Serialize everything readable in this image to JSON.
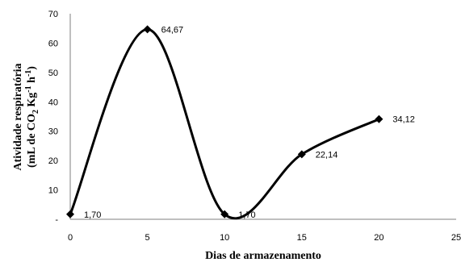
{
  "chart_data": {
    "type": "line",
    "smooth": true,
    "x": [
      0,
      5,
      10,
      15,
      20
    ],
    "series": [
      {
        "values": [
          1.7,
          64.67,
          1.7,
          22.14,
          34.12
        ],
        "color": "#000000",
        "marker": "diamond"
      }
    ],
    "data_labels": [
      "1,70",
      "64,67",
      "1,70",
      "22,14",
      "34,12"
    ],
    "xlabel": "Dias de armazenamento",
    "ylabel": {
      "line1": "Atividade respiratória",
      "line2_parts": [
        "(mL de CO",
        "2",
        " Kg",
        "-1",
        " h",
        "-1",
        ")"
      ]
    },
    "xlim": [
      0,
      25
    ],
    "ylim": [
      0,
      70
    ],
    "x_ticks": [
      0,
      5,
      10,
      15,
      20,
      25
    ],
    "y_ticks": [
      0,
      10,
      20,
      30,
      40,
      50,
      60,
      70
    ],
    "y_zero_label": "-",
    "grid": false
  }
}
